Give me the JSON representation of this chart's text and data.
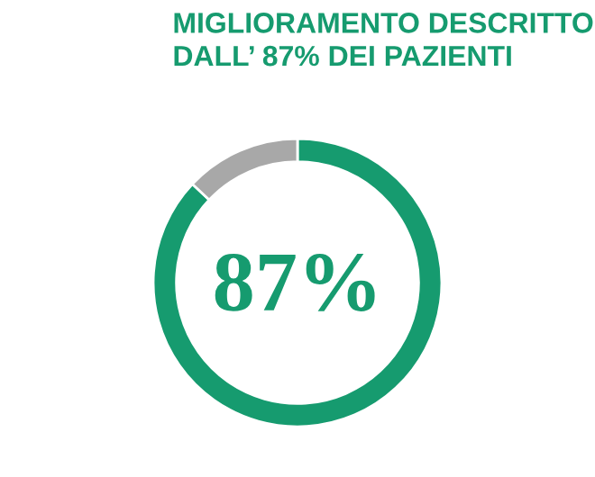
{
  "chart_data": {
    "type": "donut",
    "title": "MIGLIORAMENTO DESCRITTO\nDALL’ 87% DEI PAZIENTI",
    "categories": [
      null,
      null
    ],
    "values": [
      87,
      13
    ],
    "colors": [
      "#169b6f",
      "#a8a8a8"
    ],
    "value_labels": [
      "87%",
      null
    ]
  }
}
